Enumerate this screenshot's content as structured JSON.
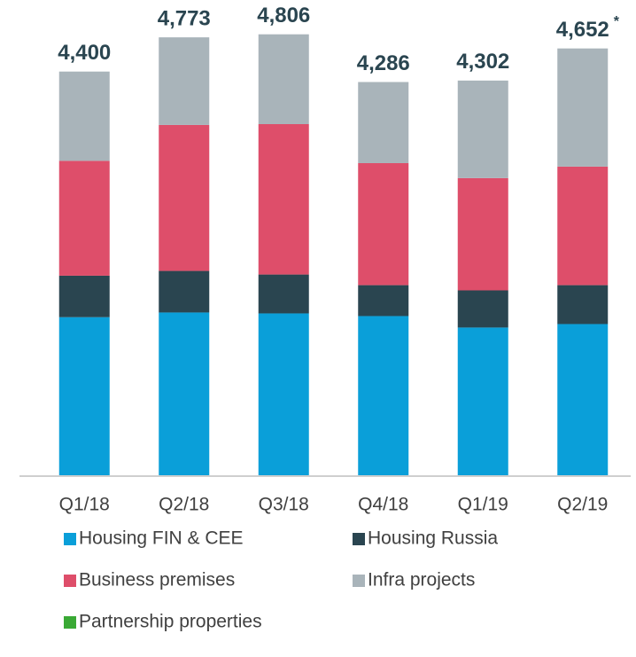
{
  "chart_data": {
    "type": "stacked_bar",
    "categories": [
      "Q1/18",
      "Q2/18",
      "Q3/18",
      "Q4/18",
      "Q1/19",
      "Q2/19"
    ],
    "series": [
      {
        "name": "Housing FIN & CEE",
        "color": "#0a9fd9",
        "values": [
          1723,
          1774,
          1764,
          1735,
          1610,
          1648
        ]
      },
      {
        "name": "Housing Russia",
        "color": "#2a4550",
        "values": [
          452,
          453,
          424,
          337,
          405,
          424
        ]
      },
      {
        "name": "Business premises",
        "color": "#de4e6a",
        "values": [
          1252,
          1591,
          1639,
          1330,
          1224,
          1292
        ]
      },
      {
        "name": "Infra projects",
        "color": "#a9b4ba",
        "values": [
          973,
          955,
          979,
          884,
          1063,
          1288
        ]
      },
      {
        "name": "Partnership properties",
        "color": "#3aa935",
        "values": [
          0,
          0,
          0,
          0,
          0,
          0
        ]
      }
    ],
    "totals": [
      4400,
      4773,
      4806,
      4286,
      4302,
      4652
    ],
    "value_labels": [
      "4,400",
      "4,773",
      "4,806",
      "4,286",
      "4,302",
      "4,652"
    ],
    "annotation": "*",
    "ylim": [
      0,
      5180
    ]
  }
}
